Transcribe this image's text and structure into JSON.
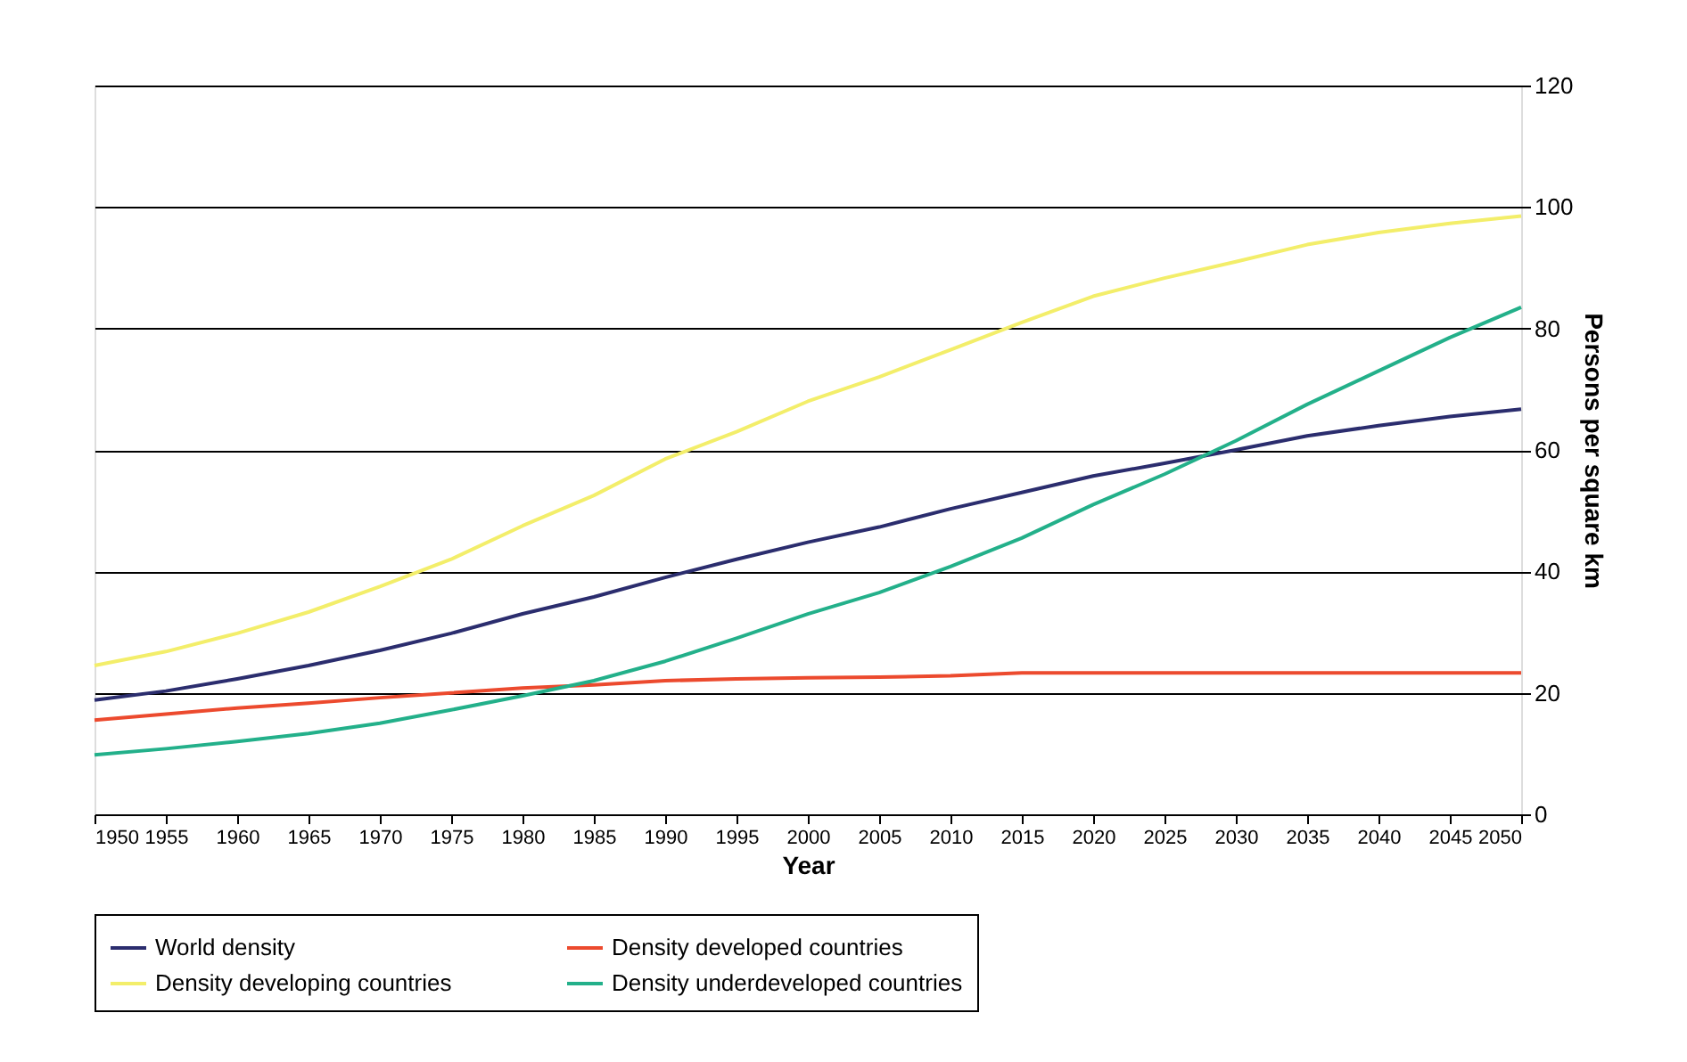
{
  "chart_data": {
    "type": "line",
    "xlabel": "Year",
    "ylabel": "Persons per square km",
    "x": [
      1950,
      1955,
      1960,
      1965,
      1970,
      1975,
      1980,
      1985,
      1990,
      1995,
      2000,
      2005,
      2010,
      2015,
      2020,
      2025,
      2030,
      2035,
      2040,
      2045,
      2050
    ],
    "xlim": [
      1950,
      2050
    ],
    "xticks": [
      1950,
      1955,
      1960,
      1965,
      1970,
      1975,
      1980,
      1985,
      1990,
      1995,
      2000,
      2005,
      2010,
      2015,
      2020,
      2025,
      2030,
      2035,
      2040,
      2045,
      2050
    ],
    "ylim": [
      0,
      120
    ],
    "yticks": [
      0,
      20,
      40,
      60,
      80,
      100,
      120
    ],
    "grid": "y",
    "legend": "bottom",
    "marker": "none",
    "line_style": "solid",
    "series": [
      {
        "name": "World density",
        "color": "#2b2d6e",
        "values": [
          18.8,
          20.3,
          22.3,
          24.5,
          27,
          29.8,
          33,
          35.8,
          39,
          42,
          44.8,
          47.3,
          50.3,
          53,
          55.7,
          57.8,
          60,
          62.3,
          64,
          65.5,
          66.7
        ]
      },
      {
        "name": "Density developed countries",
        "color": "#ec4a2e",
        "values": [
          15.5,
          16.5,
          17.5,
          18.3,
          19.2,
          20,
          20.8,
          21.3,
          22,
          22.3,
          22.5,
          22.6,
          22.8,
          23.3,
          23.3,
          23.3,
          23.3,
          23.3,
          23.3,
          23.3,
          23.3
        ]
      },
      {
        "name": "Density developing countries",
        "color": "#f3ee6a",
        "values": [
          24.5,
          26.8,
          29.8,
          33.3,
          37.5,
          42,
          47.5,
          52.5,
          58.5,
          63,
          68,
          72,
          76.5,
          81,
          85.3,
          88.3,
          91,
          93.8,
          95.8,
          97.3,
          98.5
        ]
      },
      {
        "name": "Density underdeveloped countries",
        "color": "#23b08a",
        "values": [
          9.8,
          10.8,
          12,
          13.3,
          15,
          17.2,
          19.5,
          22,
          25.2,
          29,
          33,
          36.5,
          40.8,
          45.5,
          51,
          56,
          61.5,
          67.5,
          73,
          78.5,
          83.5
        ]
      }
    ]
  }
}
